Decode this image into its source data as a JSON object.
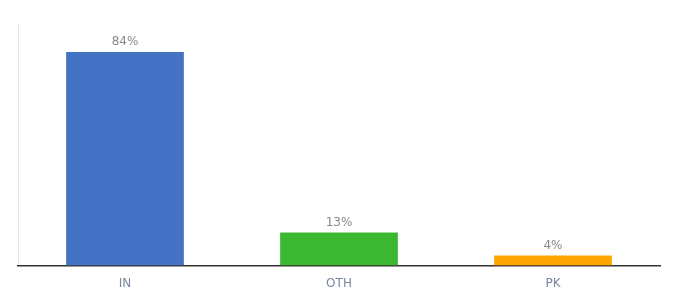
{
  "chart_data": {
    "type": "bar",
    "categories": [
      "IN",
      "OTH",
      "PK"
    ],
    "values": [
      84,
      13,
      4
    ],
    "value_labels": [
      "84%",
      "13%",
      "4%"
    ],
    "colors": [
      "#4472C4",
      "#3CB731",
      "#FFA500"
    ],
    "ylim": [
      0,
      95
    ],
    "grid": false,
    "tick_labels": "x",
    "data_labels": true
  }
}
